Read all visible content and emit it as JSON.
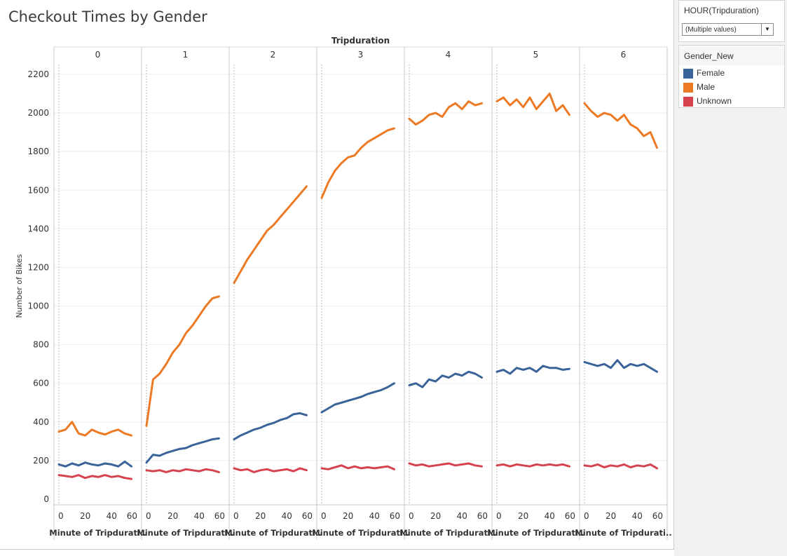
{
  "title": "Checkout Times by Gender",
  "filter": {
    "title": "HOUR(Tripduration)",
    "value": "(Multiple values)",
    "icon": "dropdown-arrow-icon"
  },
  "legend": {
    "title": "Gender_New",
    "items": [
      {
        "label": "Female",
        "color": "#3a6499"
      },
      {
        "label": "Male",
        "color": "#ec7a24"
      },
      {
        "label": "Unknown",
        "color": "#d6434f"
      }
    ]
  },
  "chart_data": {
    "type": "line",
    "column_header": "Tripduration",
    "panels": [
      "0",
      "1",
      "2",
      "3",
      "4",
      "5",
      "6"
    ],
    "ylabel": "Number of Bikes",
    "ylim": [
      0,
      2200
    ],
    "yticks": [
      0,
      200,
      400,
      600,
      800,
      1000,
      1200,
      1400,
      1600,
      1800,
      2000,
      2200
    ],
    "xlabel": "Minute of Tripdurati..",
    "xlabels": [
      "Minute of Tripdurati..",
      "Minute of Tripdurati..",
      "Minute of Tripdurati..",
      "Minute of Tripdurati..",
      "Minute of Tripdurati..",
      "Minute of Tripdurati..",
      "Minute of Tripdurati.."
    ],
    "xlim": [
      0,
      59
    ],
    "xticks": [
      0,
      20,
      40,
      60
    ],
    "x_step_minutes": 5,
    "grid": true,
    "legend_position": "right",
    "series": [
      {
        "name": "Male",
        "color": "#ec7a24",
        "panels": [
          [
            350,
            360,
            400,
            340,
            330,
            360,
            345,
            335,
            350,
            360,
            340,
            330
          ],
          [
            380,
            620,
            650,
            700,
            760,
            800,
            860,
            900,
            950,
            1000,
            1040,
            1050
          ],
          [
            1120,
            1180,
            1240,
            1290,
            1340,
            1390,
            1420,
            1460,
            1500,
            1540,
            1580,
            1620
          ],
          [
            1560,
            1640,
            1700,
            1740,
            1770,
            1780,
            1820,
            1850,
            1870,
            1890,
            1910,
            1920
          ],
          [
            1970,
            1940,
            1960,
            1990,
            2000,
            1980,
            2030,
            2050,
            2020,
            2060,
            2040,
            2050
          ],
          [
            2060,
            2080,
            2040,
            2070,
            2030,
            2080,
            2020,
            2060,
            2100,
            2010,
            2040,
            1990
          ],
          [
            2050,
            2010,
            1980,
            2000,
            1990,
            1960,
            1990,
            1940,
            1920,
            1880,
            1900,
            1820
          ]
        ]
      },
      {
        "name": "Female",
        "color": "#3a6499",
        "panels": [
          [
            180,
            170,
            185,
            175,
            190,
            180,
            175,
            185,
            180,
            170,
            195,
            170
          ],
          [
            190,
            230,
            225,
            240,
            250,
            260,
            265,
            280,
            290,
            300,
            310,
            315
          ],
          [
            310,
            330,
            345,
            360,
            370,
            385,
            395,
            410,
            420,
            440,
            445,
            435
          ],
          [
            450,
            470,
            490,
            500,
            510,
            520,
            530,
            545,
            555,
            565,
            580,
            600
          ],
          [
            590,
            600,
            580,
            620,
            610,
            640,
            630,
            650,
            640,
            660,
            650,
            630
          ],
          [
            660,
            670,
            650,
            680,
            670,
            680,
            660,
            690,
            680,
            680,
            670,
            675
          ],
          [
            710,
            700,
            690,
            700,
            680,
            720,
            680,
            700,
            690,
            700,
            680,
            660
          ]
        ]
      },
      {
        "name": "Unknown",
        "color": "#d6434f",
        "panels": [
          [
            125,
            120,
            115,
            125,
            110,
            120,
            115,
            125,
            115,
            120,
            110,
            105
          ],
          [
            150,
            145,
            150,
            140,
            150,
            145,
            155,
            150,
            145,
            155,
            150,
            140
          ],
          [
            160,
            150,
            155,
            140,
            150,
            155,
            145,
            150,
            155,
            145,
            160,
            150
          ],
          [
            160,
            155,
            165,
            175,
            160,
            170,
            160,
            165,
            160,
            165,
            170,
            155
          ],
          [
            185,
            175,
            180,
            170,
            175,
            180,
            185,
            175,
            180,
            185,
            175,
            170
          ],
          [
            175,
            180,
            170,
            180,
            175,
            170,
            180,
            175,
            180,
            175,
            180,
            170
          ],
          [
            175,
            170,
            180,
            165,
            175,
            170,
            180,
            165,
            175,
            170,
            180,
            160
          ]
        ]
      }
    ]
  }
}
